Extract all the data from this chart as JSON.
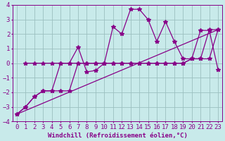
{
  "xlabel": "Windchill (Refroidissement éolien,°C)",
  "xlim": [
    -0.5,
    23.5
  ],
  "ylim": [
    -4,
    4
  ],
  "xticks": [
    0,
    1,
    2,
    3,
    4,
    5,
    6,
    7,
    8,
    9,
    10,
    11,
    12,
    13,
    14,
    15,
    16,
    17,
    18,
    19,
    20,
    21,
    22,
    23
  ],
  "yticks": [
    -4,
    -3,
    -2,
    -1,
    0,
    1,
    2,
    3,
    4
  ],
  "bg_color": "#c8eaea",
  "line_color": "#880088",
  "grid_color": "#9bbfbf",
  "series1_x": [
    0,
    1,
    2,
    3,
    4,
    5,
    6,
    7,
    8,
    9,
    10,
    11,
    12,
    13,
    14,
    15,
    16,
    17,
    18,
    19,
    20,
    21,
    22,
    23
  ],
  "series1_y": [
    -3.5,
    -3.0,
    -2.3,
    -1.9,
    -1.9,
    0.0,
    0.0,
    1.1,
    -0.6,
    -0.5,
    0.0,
    2.5,
    2.0,
    3.7,
    3.7,
    3.0,
    1.5,
    2.85,
    1.5,
    0.3,
    0.3,
    2.25,
    2.25,
    -0.45
  ],
  "series2_x": [
    1,
    2,
    3,
    4,
    5,
    6,
    7,
    8,
    9,
    10,
    11,
    12,
    13,
    14,
    15,
    16,
    17,
    18,
    19,
    20,
    21,
    22,
    23
  ],
  "series2_y": [
    0.0,
    0.0,
    0.0,
    0.0,
    0.0,
    0.0,
    0.0,
    0.0,
    0.0,
    0.0,
    0.0,
    0.0,
    0.0,
    0.0,
    0.0,
    0.0,
    0.0,
    0.0,
    0.0,
    0.3,
    0.3,
    0.3,
    2.3
  ],
  "series3_x": [
    0,
    23
  ],
  "series3_y": [
    -3.5,
    2.3
  ],
  "series4_x": [
    0,
    1,
    2,
    3,
    4,
    5,
    6,
    7,
    8,
    9,
    10,
    11,
    12,
    13,
    14,
    15,
    16,
    17,
    18,
    19,
    20,
    21,
    22,
    23
  ],
  "series4_y": [
    -3.5,
    -3.0,
    -2.3,
    -1.9,
    -1.9,
    -1.9,
    -1.9,
    0.0,
    0.0,
    0.0,
    0.0,
    0.0,
    0.0,
    0.0,
    0.0,
    0.0,
    0.0,
    0.0,
    0.0,
    0.0,
    0.3,
    0.3,
    2.3,
    2.3
  ],
  "font_size": 6.5
}
